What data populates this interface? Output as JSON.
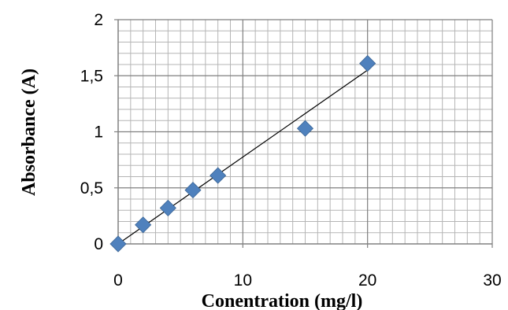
{
  "chart_data": {
    "type": "scatter",
    "title": "",
    "xlabel": "Conentration (mg/l)",
    "ylabel": "Absorbance (A)",
    "xlim": [
      0,
      30
    ],
    "ylim": [
      0,
      2
    ],
    "x_ticks": [
      0,
      10,
      20,
      30
    ],
    "x_tick_labels": [
      "0",
      "10",
      "20",
      "30"
    ],
    "y_ticks": [
      0,
      0.5,
      1,
      1.5,
      2
    ],
    "y_tick_labels": [
      "0",
      "0,5",
      "1",
      "1,5",
      "2"
    ],
    "grid": true,
    "legend": "none",
    "series": [
      {
        "x": [
          0,
          2,
          4,
          6,
          8,
          15,
          20
        ],
        "y": [
          0,
          0.17,
          0.32,
          0.48,
          0.61,
          1.03,
          1.61
        ],
        "marker": "diamond",
        "color": "#4f81bd"
      }
    ],
    "trendline": {
      "type": "linear",
      "x": [
        0,
        20
      ],
      "y": [
        0,
        1.55
      ],
      "color": "#000000"
    }
  }
}
